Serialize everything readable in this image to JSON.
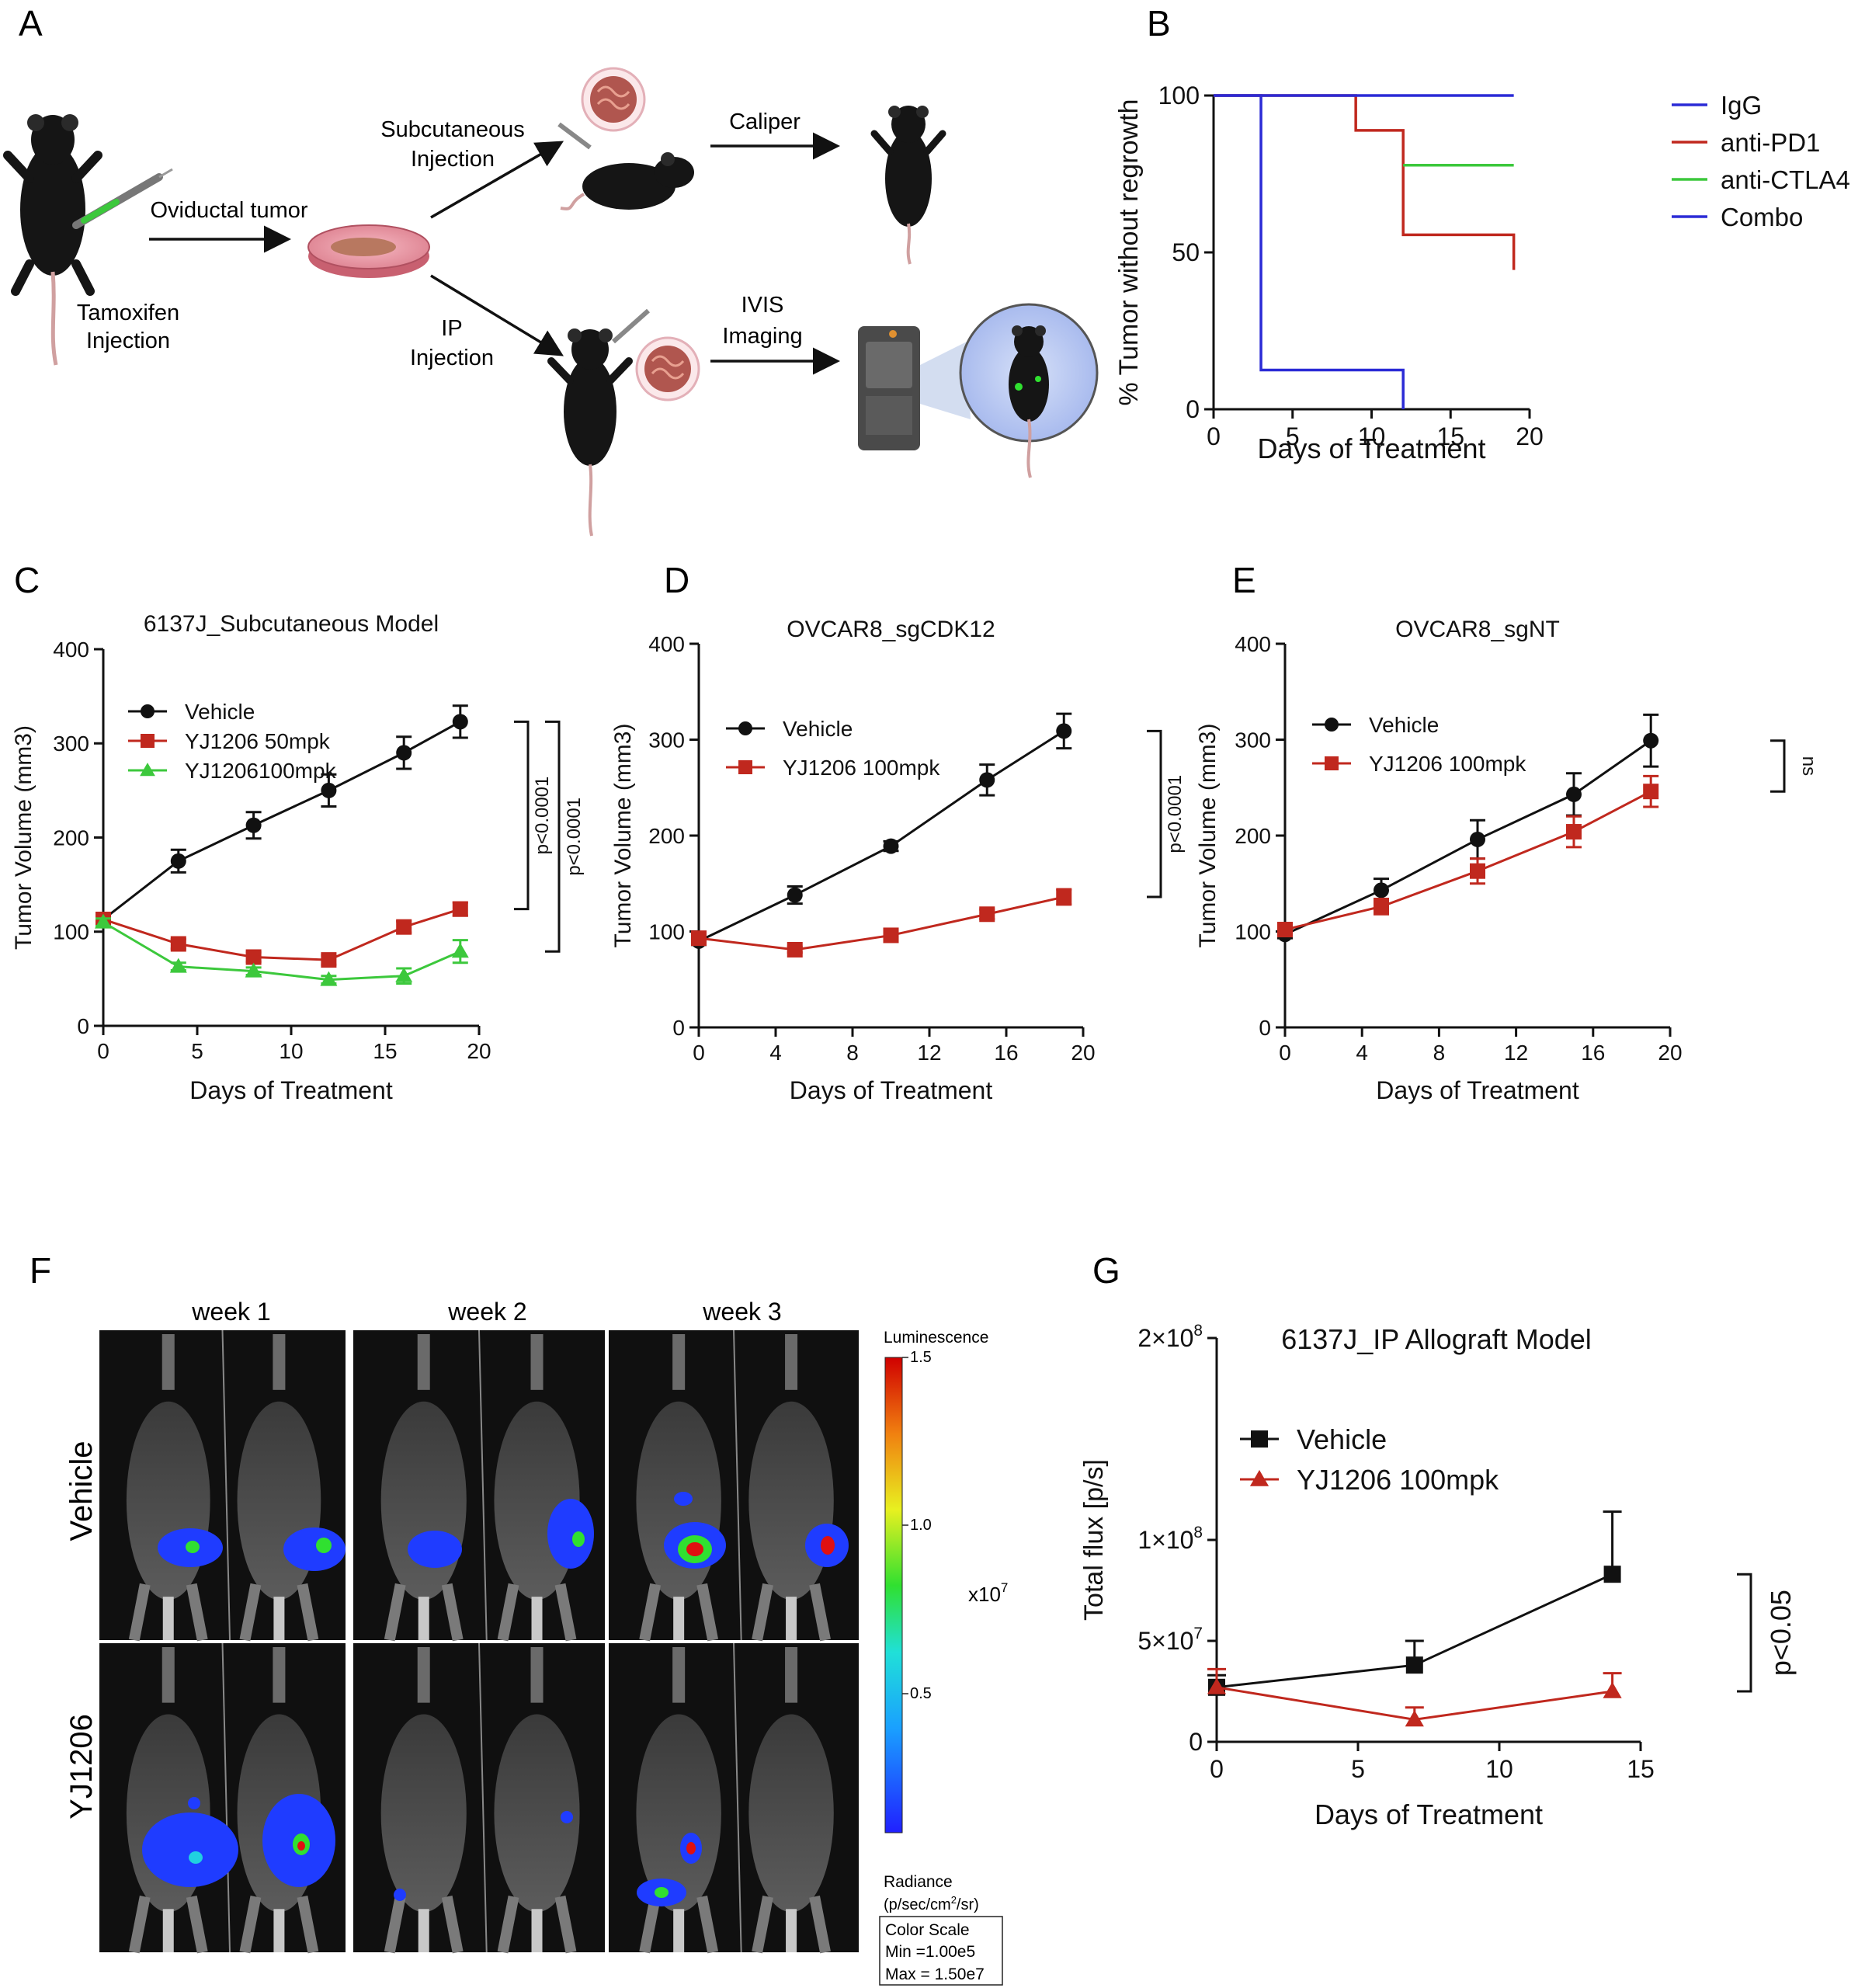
{
  "panels": {
    "A": {
      "letter": "A",
      "labels": {
        "tamoxifen": [
          "Tamoxifen",
          "Injection"
        ],
        "oviductal": "Oviductal tumor",
        "subcutaneous": [
          "Subcutaneous",
          "Injection"
        ],
        "caliper": "Caliper",
        "ip": [
          "IP",
          "Injection"
        ],
        "ivis": [
          "IVIS",
          "Imaging"
        ]
      }
    },
    "B": {
      "letter": "B"
    },
    "C": {
      "letter": "C"
    },
    "D": {
      "letter": "D"
    },
    "E": {
      "letter": "E"
    },
    "F": {
      "letter": "F",
      "columns": [
        "week 1",
        "week 2",
        "week 3"
      ],
      "rows": [
        "Vehicle",
        "YJ1206"
      ],
      "colorbar": {
        "title": "Luminescence",
        "ticks": [
          "1.5",
          "1.0",
          "0.5"
        ],
        "multiplier": "x10",
        "multiplier_exp": "7",
        "radiance_label": "Radiance",
        "radiance_units_pre": "(p/sec/cm",
        "radiance_units_sup": "2",
        "radiance_units_post": "/sr)",
        "scale_title": "Color Scale",
        "scale_min": "Min =1.00e5",
        "scale_max": "Max = 1.50e7"
      },
      "colors": {
        "blue": "#1f3cff",
        "cyan": "#20d0e0",
        "green": "#30e030",
        "yellow": "#f0e020",
        "red": "#e01010"
      }
    },
    "G": {
      "letter": "G"
    }
  },
  "chart_data": [
    {
      "id": "B",
      "type": "line",
      "step": true,
      "ylabel": "% Tumor without regrowth",
      "xlabel": "Days of Treatment",
      "xlim": [
        0,
        20
      ],
      "ylim": [
        0,
        100
      ],
      "xticks": [
        0,
        5,
        10,
        15,
        20
      ],
      "yticks": [
        0,
        50,
        100
      ],
      "legend": "right",
      "series": [
        {
          "name": "IgG",
          "color": "#2b2bd6",
          "points": [
            [
              0,
              100
            ],
            [
              3,
              100
            ],
            [
              3,
              12.5
            ],
            [
              12,
              12.5
            ],
            [
              12,
              0
            ]
          ]
        },
        {
          "name": "anti-PD1",
          "color": "#c0281e",
          "points": [
            [
              0,
              100
            ],
            [
              9,
              100
            ],
            [
              9,
              88.9
            ],
            [
              12,
              88.9
            ],
            [
              12,
              55.6
            ],
            [
              19,
              55.6
            ],
            [
              19,
              44.4
            ]
          ]
        },
        {
          "name": "anti-CTLA4",
          "color": "#3cc83c",
          "points": [
            [
              12,
              77.8
            ],
            [
              19,
              77.8
            ]
          ]
        },
        {
          "name": "Combo",
          "color": "#2b2bd6",
          "points": [
            [
              0,
              100
            ],
            [
              19,
              100
            ]
          ]
        }
      ]
    },
    {
      "id": "C",
      "type": "line",
      "title": "6137J_Subcutaneous Model",
      "ylabel": "Tumor Volume (mm3)",
      "xlabel": "Days of Treatment",
      "xlim": [
        0,
        20
      ],
      "ylim": [
        0,
        400
      ],
      "xticks": [
        0,
        5,
        10,
        15,
        20
      ],
      "yticks": [
        0,
        100,
        200,
        300,
        400
      ],
      "legend": "top-left",
      "series": [
        {
          "name": "Vehicle",
          "color": "#111111",
          "marker": "circle",
          "x": [
            0,
            4,
            8,
            12,
            16,
            19
          ],
          "y": [
            113,
            175,
            213,
            250,
            290,
            323
          ],
          "err": [
            4,
            12,
            14,
            17,
            17,
            17
          ]
        },
        {
          "name": "YJ1206 50mpk",
          "color": "#c0281e",
          "marker": "square",
          "x": [
            0,
            4,
            8,
            12,
            16,
            19
          ],
          "y": [
            113,
            87,
            73,
            70,
            105,
            124
          ],
          "err": [
            4,
            5,
            5,
            5,
            6,
            7
          ]
        },
        {
          "name": "YJ1206100mpk",
          "color": "#3cc83c",
          "marker": "triangle",
          "x": [
            0,
            4,
            8,
            12,
            16,
            19
          ],
          "y": [
            110,
            63,
            58,
            49,
            53,
            79
          ],
          "err": [
            4,
            4,
            4,
            4,
            8,
            12
          ]
        }
      ],
      "annotations": [
        "p<0.0001",
        "p<0.0001"
      ]
    },
    {
      "id": "D",
      "type": "line",
      "title": "OVCAR8_sgCDK12",
      "ylabel": "Tumor Volume (mm3)",
      "xlabel": "Days of Treatment",
      "xlim": [
        0,
        20
      ],
      "ylim": [
        0,
        400
      ],
      "xticks": [
        0,
        4,
        8,
        12,
        16,
        20
      ],
      "yticks": [
        0,
        100,
        200,
        300,
        400
      ],
      "legend": "top-left",
      "series": [
        {
          "name": "Vehicle",
          "color": "#111111",
          "marker": "circle",
          "x": [
            0,
            5,
            10,
            15,
            19
          ],
          "y": [
            90,
            138,
            189,
            258,
            309
          ],
          "err": [
            4,
            9,
            5,
            16,
            18
          ]
        },
        {
          "name": "YJ1206 100mpk",
          "color": "#c0281e",
          "marker": "square",
          "x": [
            0,
            5,
            10,
            15,
            19
          ],
          "y": [
            93,
            81,
            96,
            118,
            136
          ],
          "err": [
            4,
            3,
            4,
            5,
            8
          ]
        }
      ],
      "annotations": [
        "p<0.0001"
      ]
    },
    {
      "id": "E",
      "type": "line",
      "title": "OVCAR8_sgNT",
      "ylabel": "Tumor Volume (mm3)",
      "xlabel": "Days of Treatment",
      "xlim": [
        0,
        20
      ],
      "ylim": [
        0,
        400
      ],
      "xticks": [
        0,
        4,
        8,
        12,
        16,
        20
      ],
      "yticks": [
        0,
        100,
        200,
        300,
        400
      ],
      "legend": "top-left",
      "series": [
        {
          "name": "Vehicle",
          "color": "#111111",
          "marker": "circle",
          "x": [
            0,
            5,
            10,
            15,
            19
          ],
          "y": [
            97,
            143,
            196,
            243,
            299
          ],
          "err": [
            4,
            12,
            20,
            22,
            27
          ]
        },
        {
          "name": "YJ1206 100mpk",
          "color": "#c0281e",
          "marker": "square",
          "x": [
            0,
            5,
            10,
            15,
            19
          ],
          "y": [
            102,
            126,
            163,
            204,
            246
          ],
          "err": [
            4,
            8,
            13,
            16,
            16
          ]
        }
      ],
      "annotations": [
        "ns"
      ]
    },
    {
      "id": "G",
      "type": "line",
      "title": "6137J_IP Allograft Model",
      "ylabel": "Total flux [p/s]",
      "xlabel": "Days of Treatment",
      "xlim": [
        0,
        15
      ],
      "ylim": [
        0,
        200000000
      ],
      "xticks": [
        0,
        5,
        10,
        15
      ],
      "yticks": [
        0,
        50000000,
        100000000,
        200000000
      ],
      "yticklabels": [
        {
          "v": 0,
          "mant": "0",
          "exp": ""
        },
        {
          "v": 50000000,
          "mant": "5×10",
          "exp": "7"
        },
        {
          "v": 100000000,
          "mant": "1×10",
          "exp": "8"
        },
        {
          "v": 200000000,
          "mant": "2×10",
          "exp": "8"
        }
      ],
      "legend": "top-left",
      "series": [
        {
          "name": "Vehicle",
          "color": "#111111",
          "marker": "square",
          "x": [
            0,
            7,
            14
          ],
          "y": [
            27000000,
            38000000,
            83000000
          ],
          "err": [
            6000000,
            12000000,
            31000000
          ]
        },
        {
          "name": "YJ1206 100mpk",
          "color": "#c0281e",
          "marker": "triangle",
          "x": [
            0,
            7,
            14
          ],
          "y": [
            27000000,
            11000000,
            25000000
          ],
          "err": [
            9000000,
            6000000,
            9000000
          ]
        }
      ],
      "annotations": [
        "p<0.05"
      ]
    }
  ]
}
